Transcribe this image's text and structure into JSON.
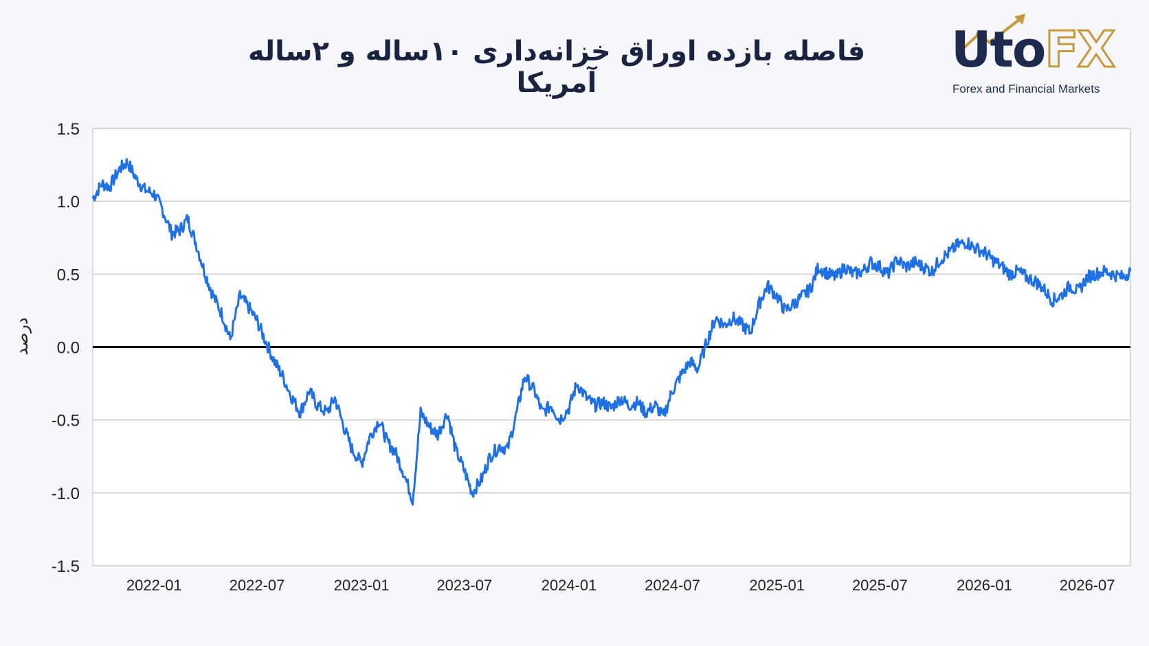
{
  "title": "فاصله بازده اوراق خزانه‌داری ۱۰ساله و ۲ساله آمریکا",
  "logo": {
    "brand_part1": "Uto",
    "brand_part2": "FX",
    "tagline": "Forex and Financial Markets"
  },
  "colors": {
    "line": "#1f6fe5",
    "zero_line": "#000000",
    "grid": "#cfcfcf",
    "title": "#1a2340",
    "logo_navy": "#1b2a4e",
    "logo_gold": "#c69a3c"
  },
  "chart_data": {
    "type": "line",
    "title": "فاصله بازده اوراق خزانه‌داری ۱۰ساله و ۲ساله آمریکا",
    "xlabel": "",
    "ylabel": "درصد",
    "ylim": [
      -1.5,
      1.5
    ],
    "yticks": [
      "1.5",
      "1.0",
      "0.5",
      "0.0",
      "-0.5",
      "-1.0",
      "-1.5"
    ],
    "xticks": [
      "2022-01",
      "2022-07",
      "2023-01",
      "2023-07",
      "2024-01",
      "2024-07",
      "2025-01",
      "2025-07",
      "2026-01",
      "2026-07"
    ],
    "xlim": [
      "2021-09-15",
      "2026-09-15"
    ],
    "grid": true,
    "reference_line": 0.0,
    "series": [
      {
        "x": [
          "2021-09-15",
          "2021-10-01",
          "2021-10-15",
          "2021-11-01",
          "2021-11-15",
          "2021-12-01",
          "2021-12-15",
          "2022-01-01",
          "2022-01-15",
          "2022-02-01",
          "2022-02-15",
          "2022-03-01",
          "2022-03-15",
          "2022-04-01",
          "2022-04-15",
          "2022-05-01",
          "2022-05-15",
          "2022-06-01",
          "2022-06-15",
          "2022-07-01",
          "2022-07-15",
          "2022-08-01",
          "2022-08-15",
          "2022-09-01",
          "2022-09-15",
          "2022-10-01",
          "2022-10-15",
          "2022-11-01",
          "2022-11-15",
          "2022-12-01",
          "2022-12-15",
          "2023-01-01",
          "2023-01-15",
          "2023-02-01",
          "2023-02-15",
          "2023-03-01",
          "2023-03-15",
          "2023-04-01",
          "2023-04-15",
          "2023-05-01",
          "2023-05-15",
          "2023-06-01",
          "2023-06-15",
          "2023-07-01",
          "2023-07-15",
          "2023-08-01",
          "2023-08-15",
          "2023-09-01",
          "2023-09-15",
          "2023-10-01",
          "2023-10-15",
          "2023-11-01",
          "2023-11-15",
          "2023-12-01",
          "2023-12-15",
          "2024-01-01",
          "2024-01-15",
          "2024-02-01",
          "2024-02-15",
          "2024-03-01",
          "2024-03-15",
          "2024-04-01",
          "2024-04-15",
          "2024-05-01",
          "2024-05-15",
          "2024-06-01",
          "2024-06-15",
          "2024-07-01",
          "2024-07-15",
          "2024-08-01",
          "2024-08-15",
          "2024-09-01",
          "2024-09-15",
          "2024-10-01",
          "2024-10-15",
          "2024-11-01",
          "2024-11-15",
          "2024-12-01",
          "2024-12-15",
          "2025-01-01",
          "2025-01-15",
          "2025-02-01",
          "2025-02-15",
          "2025-03-01",
          "2025-03-15",
          "2025-04-01",
          "2025-04-15",
          "2025-05-01",
          "2025-05-15",
          "2025-06-01",
          "2025-06-15",
          "2025-07-01",
          "2025-07-15",
          "2025-08-01",
          "2025-08-15",
          "2025-09-01",
          "2025-09-15",
          "2025-10-01",
          "2025-10-15",
          "2025-11-01",
          "2025-11-15",
          "2025-12-01",
          "2025-12-15",
          "2026-01-01",
          "2026-01-15",
          "2026-02-01",
          "2026-02-15",
          "2026-03-01",
          "2026-03-15",
          "2026-04-01",
          "2026-04-15",
          "2026-05-01",
          "2026-05-15",
          "2026-06-01",
          "2026-06-15",
          "2026-07-01",
          "2026-07-15",
          "2026-08-01",
          "2026-08-15",
          "2026-09-01",
          "2026-09-15"
        ],
        "values": [
          1.02,
          1.12,
          1.1,
          1.22,
          1.27,
          1.15,
          1.08,
          1.05,
          0.95,
          0.78,
          0.8,
          0.88,
          0.72,
          0.5,
          0.35,
          0.22,
          0.05,
          0.35,
          0.28,
          0.18,
          0.05,
          -0.1,
          -0.2,
          -0.35,
          -0.45,
          -0.3,
          -0.4,
          -0.45,
          -0.35,
          -0.55,
          -0.7,
          -0.8,
          -0.62,
          -0.5,
          -0.65,
          -0.72,
          -0.85,
          -1.05,
          -0.45,
          -0.55,
          -0.6,
          -0.45,
          -0.7,
          -0.85,
          -1.0,
          -0.9,
          -0.75,
          -0.68,
          -0.7,
          -0.45,
          -0.2,
          -0.3,
          -0.45,
          -0.4,
          -0.5,
          -0.42,
          -0.25,
          -0.35,
          -0.4,
          -0.38,
          -0.42,
          -0.35,
          -0.4,
          -0.38,
          -0.45,
          -0.4,
          -0.48,
          -0.3,
          -0.2,
          -0.1,
          -0.15,
          0.05,
          0.2,
          0.15,
          0.2,
          0.15,
          0.1,
          0.3,
          0.42,
          0.35,
          0.25,
          0.3,
          0.35,
          0.4,
          0.55,
          0.5,
          0.48,
          0.55,
          0.5,
          0.52,
          0.58,
          0.55,
          0.5,
          0.6,
          0.55,
          0.58,
          0.55,
          0.52,
          0.6,
          0.65,
          0.7,
          0.72,
          0.68,
          0.65,
          0.6,
          0.55,
          0.5,
          0.52,
          0.48,
          0.45,
          0.4,
          0.32,
          0.35,
          0.42,
          0.38,
          0.48,
          0.5,
          0.52,
          0.5,
          0.48,
          0.52
        ]
      }
    ]
  }
}
